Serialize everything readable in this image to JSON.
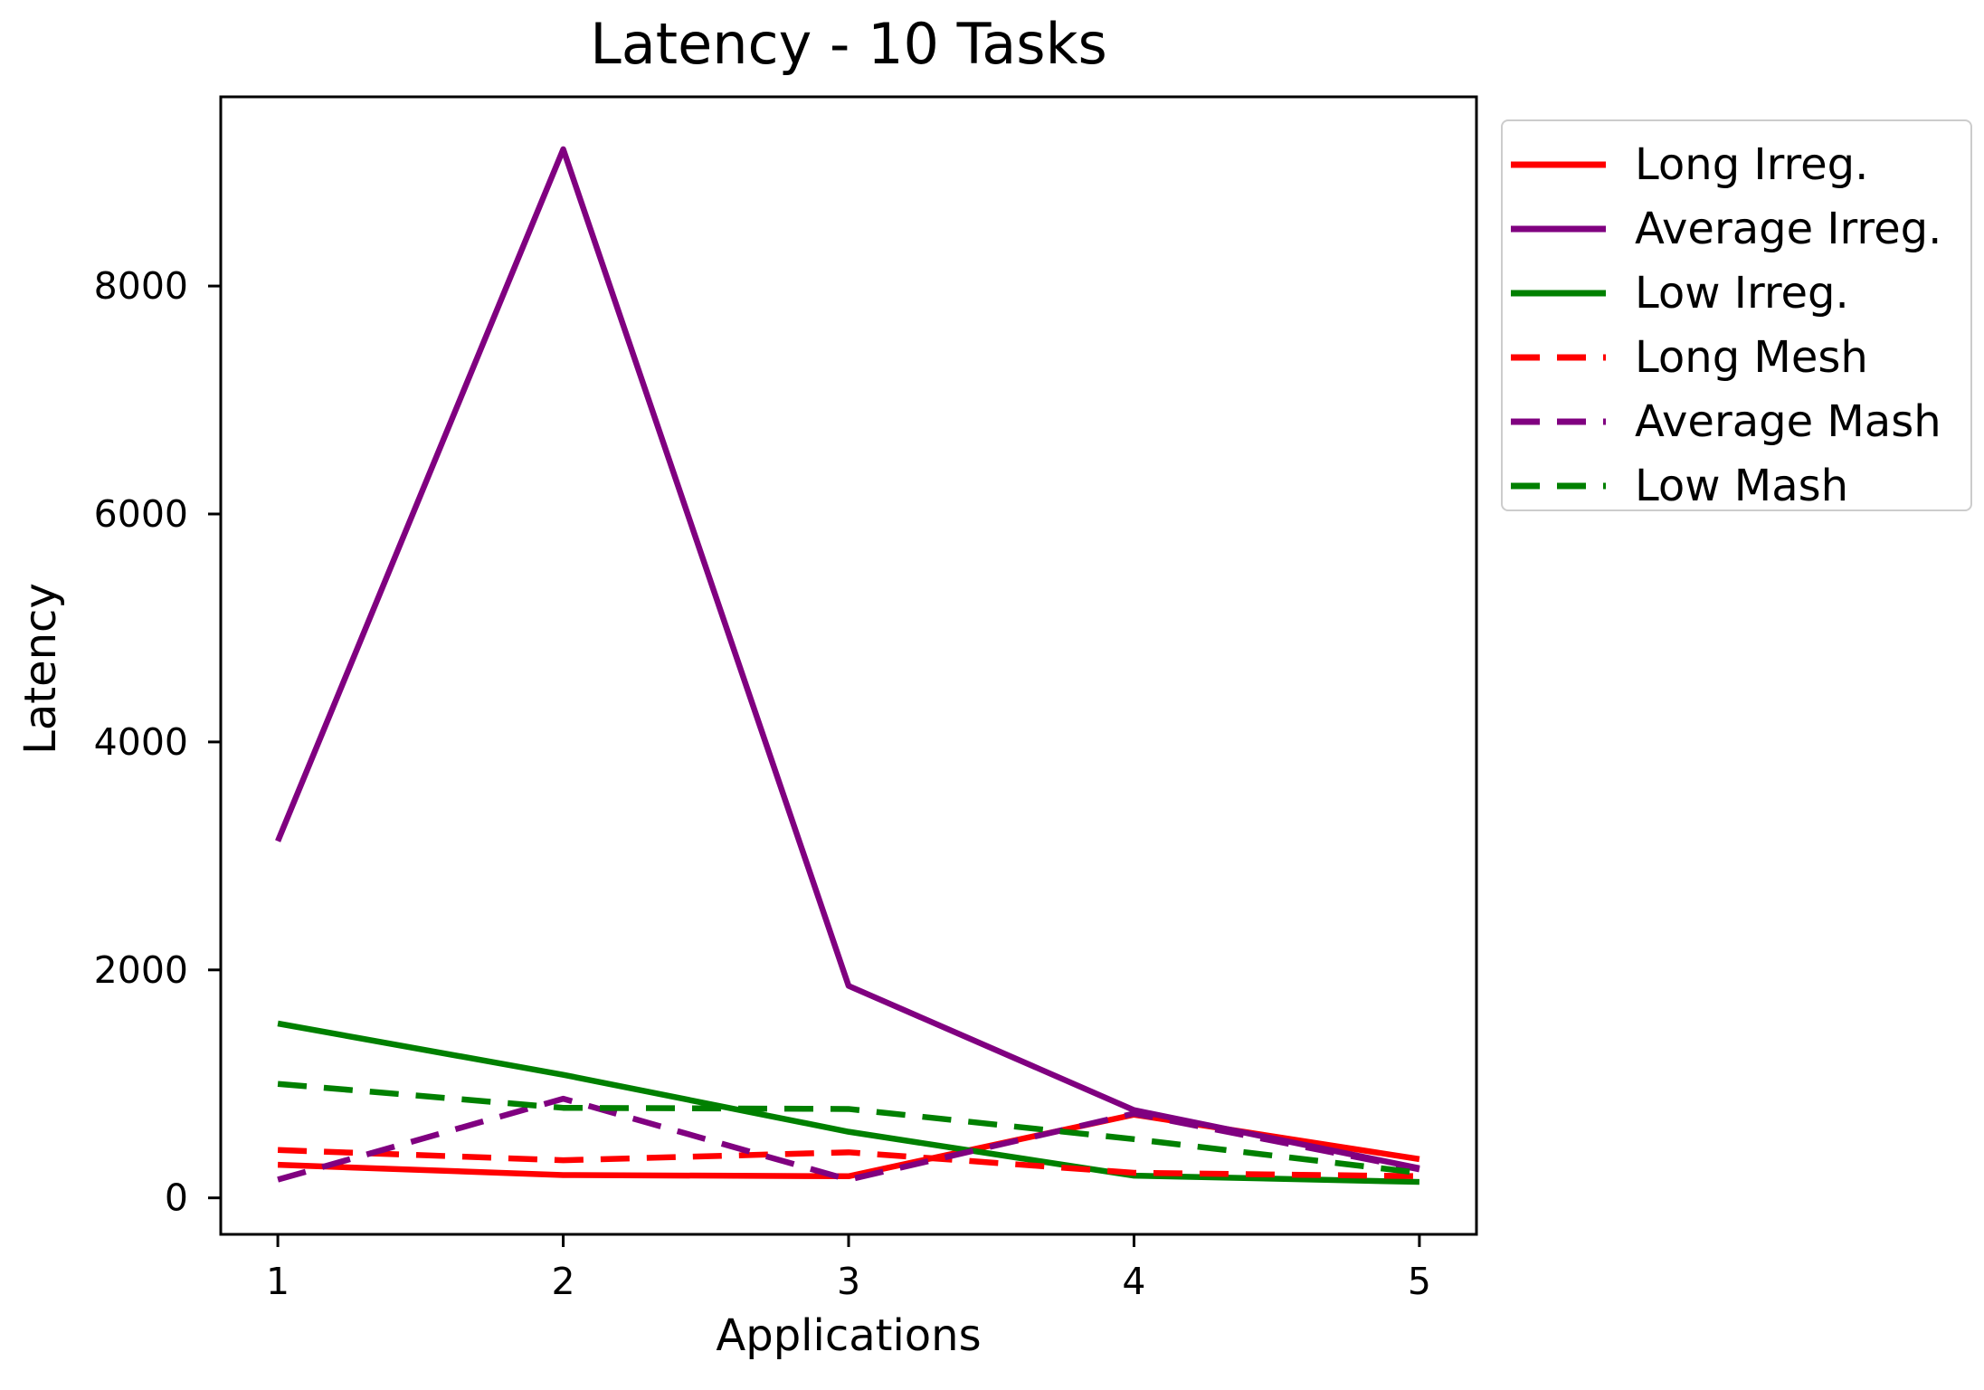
{
  "chart_data": {
    "type": "line",
    "title": "Latency - 10 Tasks",
    "xlabel": "Applications",
    "ylabel": "Latency",
    "x": [
      1,
      2,
      3,
      4,
      5
    ],
    "xticks": [
      "1",
      "2",
      "3",
      "4",
      "5"
    ],
    "yticks": [
      "0",
      "2000",
      "4000",
      "6000",
      "8000"
    ],
    "ytick_values": [
      0,
      2000,
      4000,
      6000,
      8000
    ],
    "xlim": [
      0.8,
      5.2
    ],
    "ylim": [
      -320,
      9660
    ],
    "grid": false,
    "legend_position": "outside-upper-right",
    "series": [
      {
        "name": "Long Irreg.",
        "color": "#ff0000",
        "style": "solid",
        "values": [
          290,
          200,
          190,
          730,
          340
        ]
      },
      {
        "name": "Average Irreg.",
        "color": "#800080",
        "style": "solid",
        "values": [
          3130,
          9200,
          1860,
          770,
          260
        ]
      },
      {
        "name": "Low Irreg.",
        "color": "#008000",
        "style": "solid",
        "values": [
          1530,
          1080,
          580,
          195,
          140
        ]
      },
      {
        "name": "Long Mesh",
        "color": "#ff0000",
        "style": "dashed",
        "values": [
          420,
          330,
          400,
          220,
          190
        ]
      },
      {
        "name": "Average Mash",
        "color": "#800080",
        "style": "dashed",
        "values": [
          160,
          870,
          160,
          740,
          250
        ]
      },
      {
        "name": "Low Mash",
        "color": "#008000",
        "style": "dashed",
        "values": [
          1000,
          790,
          780,
          515,
          220
        ]
      }
    ]
  },
  "colors": {
    "axis": "#000000",
    "tick_label": "#000000",
    "legend_border": "#cccccc",
    "background": "#ffffff"
  }
}
